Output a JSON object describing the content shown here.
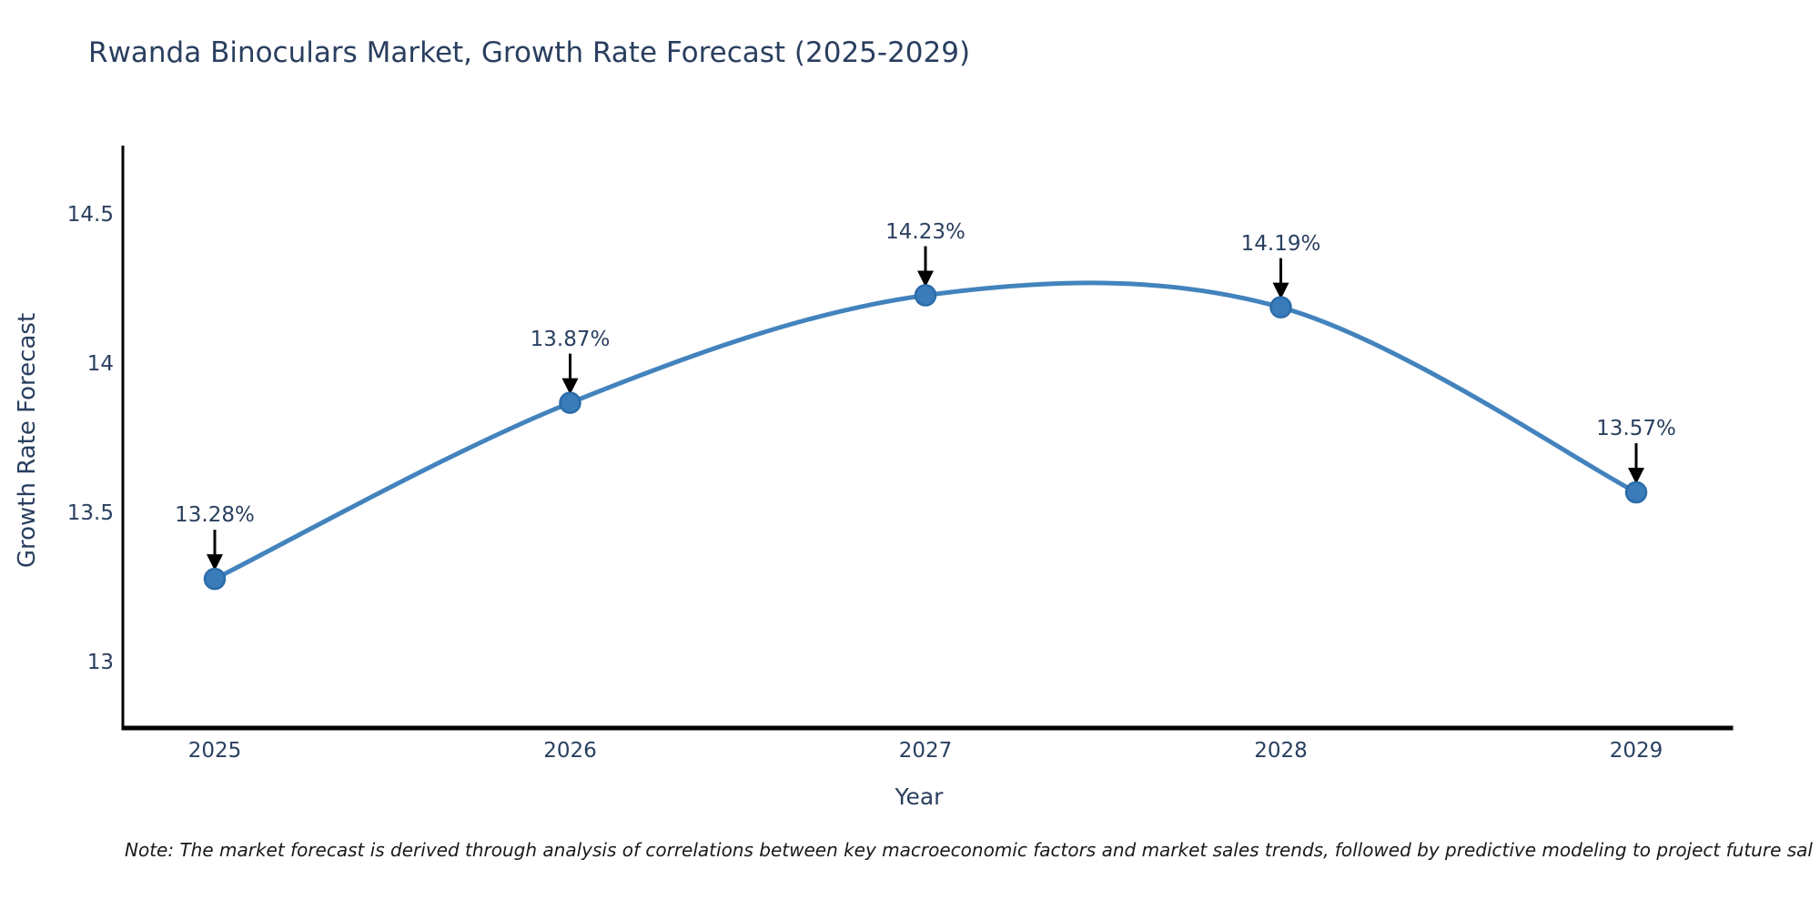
{
  "chart": {
    "title": "Rwanda Binoculars Market, Growth Rate Forecast (2025-2029)",
    "yaxis": {
      "title": "Growth Rate Forecast",
      "tick_labels": [
        "14.5",
        "14",
        "13.5",
        "13"
      ],
      "tick_values": [
        14.5,
        14,
        13.5,
        13
      ]
    },
    "xaxis": {
      "title": "Year",
      "tick_labels": [
        "2025",
        "2026",
        "2027",
        "2028",
        "2029"
      ]
    },
    "note": "Note: The market forecast is derived through analysis of correlations between key macroeconomic factors and market sales trends, followed by predictive modeling to project future sal",
    "colors": {
      "line": "#4383bd",
      "marker_fill": "#3a7cba",
      "marker_edge": "#2b6ca9",
      "text": "#2a3f5f",
      "axis_line": "#000000",
      "arrow": "#000000",
      "background": "#ffffff"
    }
  },
  "chart_data": {
    "type": "line",
    "line_shape": "spline",
    "x": [
      2025,
      2026,
      2027,
      2028,
      2029
    ],
    "values": [
      13.28,
      13.87,
      14.23,
      14.19,
      13.57
    ],
    "labels": [
      "13.28%",
      "13.87%",
      "14.23%",
      "14.19%",
      "13.57%"
    ],
    "series": [
      {
        "name": "Growth Rate Forecast",
        "values": [
          13.28,
          13.87,
          14.23,
          14.19,
          13.57
        ]
      }
    ],
    "title": "Rwanda Binoculars Market, Growth Rate Forecast (2025-2029)",
    "xlabel": "Year",
    "ylabel": "Growth Rate Forecast",
    "ylim": [
      12.75,
      14.73
    ],
    "yticks": [
      13,
      13.5,
      14,
      14.5
    ],
    "grid": false,
    "legend": false,
    "annotations": "value labels with downward arrows above each point"
  }
}
